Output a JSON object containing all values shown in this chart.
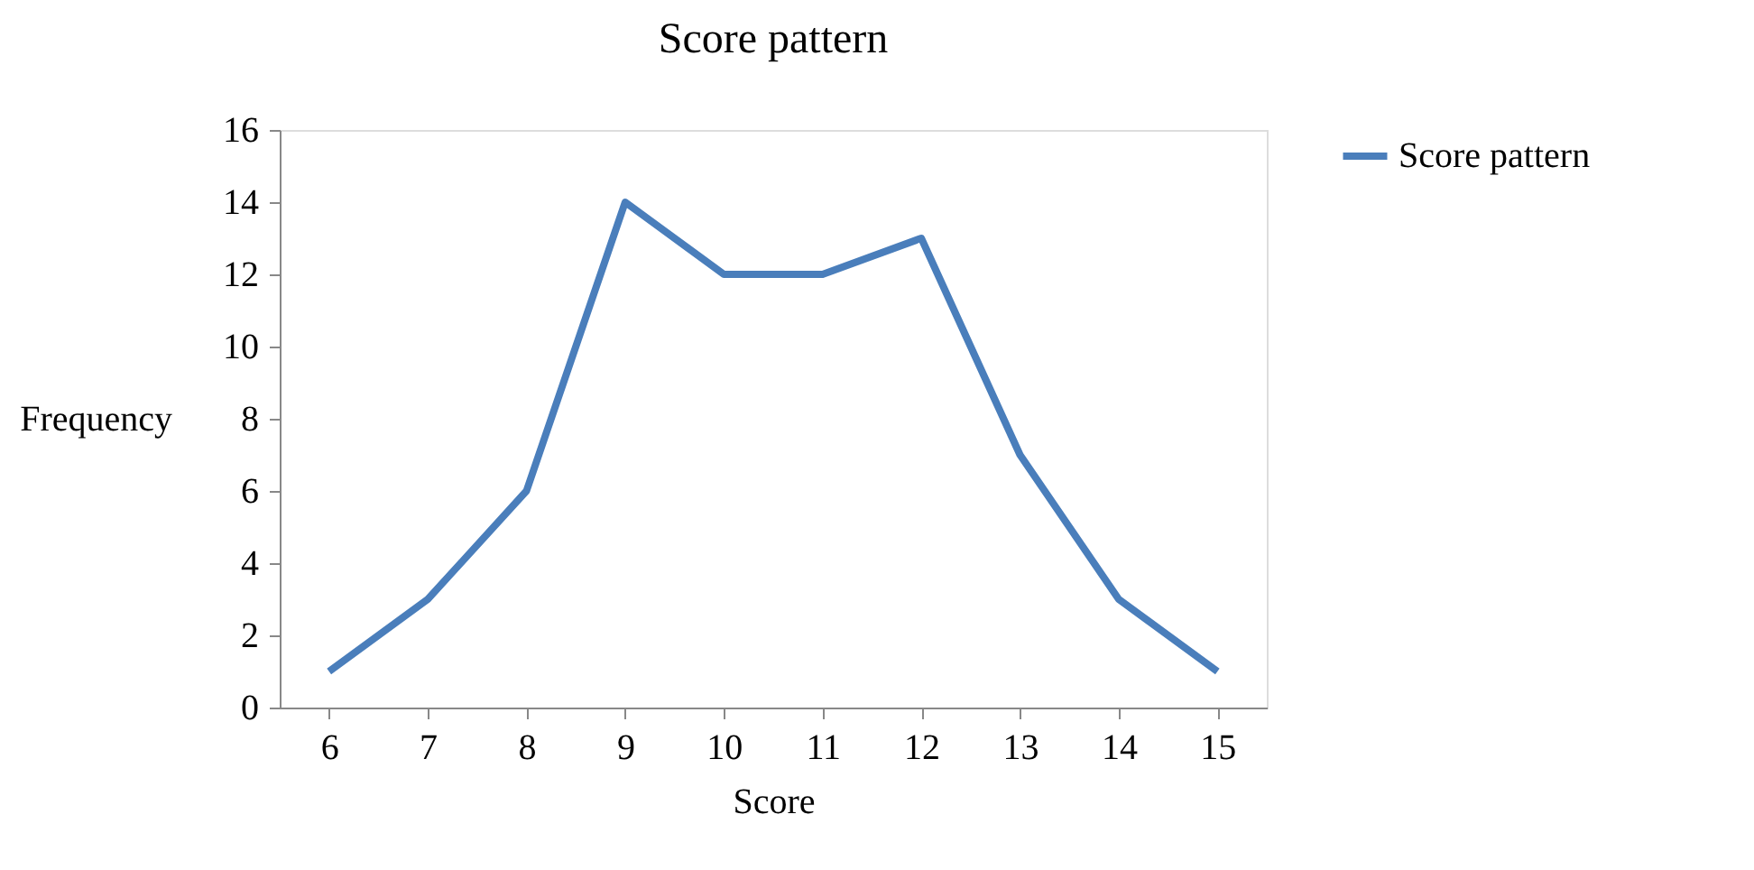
{
  "chart_data": {
    "type": "line",
    "title": "Score pattern",
    "xlabel": "Score",
    "ylabel": "Frequency",
    "categories": [
      "6",
      "7",
      "8",
      "9",
      "10",
      "11",
      "12",
      "13",
      "14",
      "15"
    ],
    "series": [
      {
        "name": "Score pattern",
        "color": "#4a7ebb",
        "values": [
          1,
          3,
          6,
          14,
          12,
          12,
          13,
          7,
          3,
          1
        ]
      }
    ],
    "ylim": [
      0,
      16
    ],
    "yticks": [
      0,
      2,
      4,
      6,
      8,
      10,
      12,
      14,
      16
    ],
    "grid": false,
    "legend": "right",
    "marker": "none",
    "line_style": "solid"
  }
}
